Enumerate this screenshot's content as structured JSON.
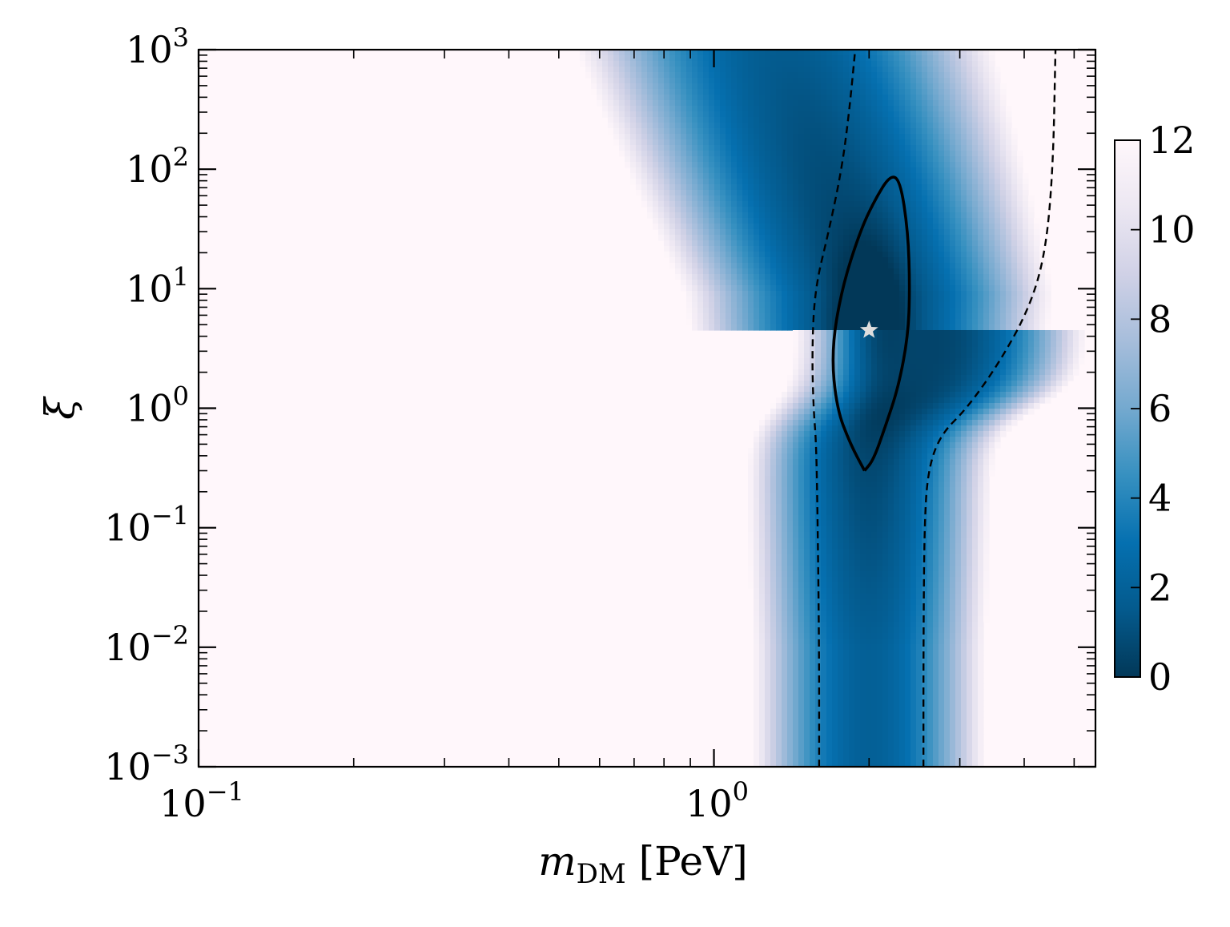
{
  "chart_data": {
    "type": "heatmap",
    "title": "",
    "xlabel": "m_DM [PeV]",
    "xlabel_parts": {
      "symbol": "m",
      "subscript": "DM",
      "unit": "[PeV]"
    },
    "ylabel": "ξ",
    "x_scale": "log",
    "y_scale": "log",
    "xlim": [
      0.1,
      5.5
    ],
    "ylim": [
      0.001,
      1000
    ],
    "x_ticks": [
      {
        "value": 0.1,
        "base": "10",
        "exp": "−1"
      },
      {
        "value": 1,
        "base": "10",
        "exp": "0"
      }
    ],
    "y_ticks": [
      {
        "value": 0.001,
        "base": "10",
        "exp": "−3"
      },
      {
        "value": 0.01,
        "base": "10",
        "exp": "−2"
      },
      {
        "value": 0.1,
        "base": "10",
        "exp": "−1"
      },
      {
        "value": 1,
        "base": "10",
        "exp": "0"
      },
      {
        "value": 10,
        "base": "10",
        "exp": "1"
      },
      {
        "value": 100,
        "base": "10",
        "exp": "2"
      },
      {
        "value": 1000,
        "base": "10",
        "exp": "3"
      }
    ],
    "colormap": "PuBu_r",
    "colorbar": {
      "range": [
        0,
        12
      ],
      "ticks": [
        "0",
        "2",
        "4",
        "6",
        "8",
        "10",
        "12"
      ],
      "colors": [
        "#023858",
        "#045a8d",
        "#0570b0",
        "#3690c0",
        "#74a9cf",
        "#a6bddb",
        "#d0d1e6",
        "#ece7f2",
        "#fff7fb"
      ]
    },
    "best_fit": {
      "m_DM": 2.0,
      "xi": 4.5,
      "color": "#dddddd"
    },
    "contours": [
      {
        "style": "solid",
        "points": [
          [
            1.96,
            0.3
          ],
          [
            1.84,
            0.5
          ],
          [
            1.73,
            1.0
          ],
          [
            1.69,
            3.0
          ],
          [
            1.77,
            10
          ],
          [
            1.92,
            30
          ],
          [
            2.05,
            55
          ],
          [
            2.2,
            90
          ],
          [
            2.3,
            80
          ],
          [
            2.38,
            30
          ],
          [
            2.4,
            10
          ],
          [
            2.38,
            4
          ],
          [
            2.28,
            1.5
          ],
          [
            2.15,
            0.7
          ],
          [
            2.04,
            0.37
          ],
          [
            1.96,
            0.3
          ]
        ]
      },
      {
        "style": "dashed",
        "points": [
          [
            1.6,
            0.001
          ],
          [
            1.6,
            0.01
          ],
          [
            1.59,
            0.1
          ],
          [
            1.58,
            0.5
          ],
          [
            1.56,
            1.0
          ],
          [
            1.55,
            3.0
          ],
          [
            1.57,
            10
          ],
          [
            1.67,
            30
          ],
          [
            1.77,
            100
          ],
          [
            1.83,
            300
          ],
          [
            1.88,
            1000
          ]
        ]
      },
      {
        "style": "dashed",
        "points": [
          [
            2.55,
            0.001
          ],
          [
            2.55,
            0.01
          ],
          [
            2.56,
            0.1
          ],
          [
            2.6,
            0.3
          ],
          [
            2.75,
            0.6
          ],
          [
            3.1,
            1.0
          ],
          [
            3.6,
            2.5
          ],
          [
            4.1,
            7
          ],
          [
            4.4,
            20
          ],
          [
            4.55,
            100
          ],
          [
            4.6,
            1000
          ]
        ]
      }
    ]
  }
}
